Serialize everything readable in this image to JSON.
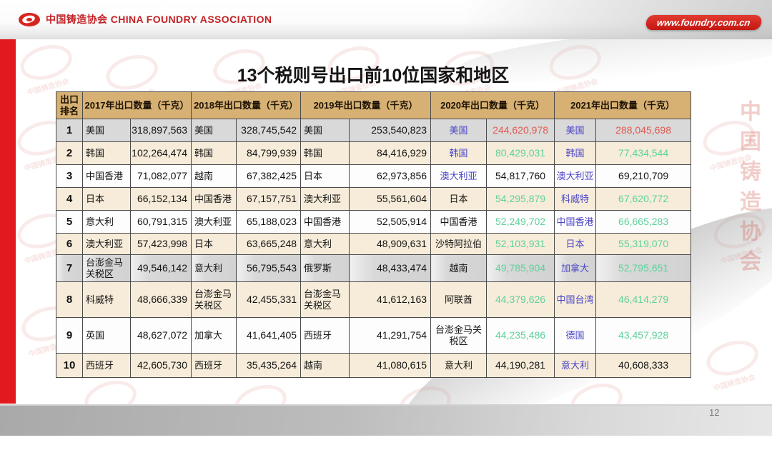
{
  "top_bar": {
    "org_name": "中国铸造协会 CHINA FOUNDRY ASSOCIATION",
    "website": "www.foundry.com.cn"
  },
  "slide": {
    "title": "13个税则号出口前10位国家和地区",
    "page_number": "12",
    "watermark_text": "中国铸造协会"
  },
  "colors": {
    "accent_red": "#e2191d",
    "brand_text_red": "#c32225",
    "badge_red": "#cf1b15",
    "header_bg": "#d7b173",
    "row_cream": "#f6ecd9",
    "row_gray": "#d9d9d9",
    "country_blue": "#4a44c6",
    "value_up_red": "#e25a52",
    "value_down_green": "#5ed19b",
    "text_black": "#141414",
    "page_number_gray": "#7a7a7a"
  },
  "table": {
    "rank_header": "出口排名",
    "year_headers": [
      "2017年出口数量（千克）",
      "2018年出口数量（千克）",
      "2019年出口数量（千克）",
      "2020年出口数量（千克）",
      "2021年出口数量（千克）"
    ],
    "rows": [
      {
        "rank": "1",
        "years": [
          {
            "c": "美国",
            "v": "318,897,563"
          },
          {
            "c": "美国",
            "v": "328,745,542"
          },
          {
            "c": "美国",
            "v": "253,540,823"
          },
          {
            "c": "美国",
            "v": "244,620,978",
            "cc": "country_blue",
            "vc": "value_up_red"
          },
          {
            "c": "美国",
            "v": "288,045,698",
            "cc": "country_blue",
            "vc": "value_up_red"
          }
        ]
      },
      {
        "rank": "2",
        "years": [
          {
            "c": "韩国",
            "v": "102,264,474"
          },
          {
            "c": "韩国",
            "v": "84,799,939"
          },
          {
            "c": "韩国",
            "v": "84,416,929"
          },
          {
            "c": "韩国",
            "v": "80,429,031",
            "cc": "country_blue",
            "vc": "value_down_green"
          },
          {
            "c": "韩国",
            "v": "77,434,544",
            "cc": "country_blue",
            "vc": "value_down_green"
          }
        ]
      },
      {
        "rank": "3",
        "years": [
          {
            "c": "中国香港",
            "v": "71,082,077"
          },
          {
            "c": "越南",
            "v": "67,382,425"
          },
          {
            "c": "日本",
            "v": "62,973,856"
          },
          {
            "c": "澳大利亚",
            "v": "54,817,760",
            "cc": "country_blue"
          },
          {
            "c": "澳大利亚",
            "v": "69,210,709",
            "cc": "country_blue"
          }
        ]
      },
      {
        "rank": "4",
        "years": [
          {
            "c": "日本",
            "v": "66,152,134"
          },
          {
            "c": "中国香港",
            "v": "67,157,751"
          },
          {
            "c": "澳大利亚",
            "v": "55,561,604"
          },
          {
            "c": "日本",
            "v": "54,295,879",
            "vc": "value_down_green"
          },
          {
            "c": "科威特",
            "v": "67,620,772",
            "cc": "country_blue",
            "vc": "value_down_green"
          }
        ]
      },
      {
        "rank": "5",
        "years": [
          {
            "c": "意大利",
            "v": "60,791,315"
          },
          {
            "c": "澳大利亚",
            "v": "65,188,023"
          },
          {
            "c": "中国香港",
            "v": "52,505,914"
          },
          {
            "c": "中国香港",
            "v": "52,249,702",
            "vc": "value_down_green"
          },
          {
            "c": "中国香港",
            "v": "66,665,283",
            "cc": "country_blue",
            "vc": "value_down_green"
          }
        ]
      },
      {
        "rank": "6",
        "years": [
          {
            "c": "澳大利亚",
            "v": "57,423,998"
          },
          {
            "c": "日本",
            "v": "63,665,248"
          },
          {
            "c": "意大利",
            "v": "48,909,631"
          },
          {
            "c": "沙特阿拉伯",
            "v": "52,103,931",
            "vc": "value_down_green"
          },
          {
            "c": "日本",
            "v": "55,319,070",
            "cc": "country_blue",
            "vc": "value_down_green"
          }
        ]
      },
      {
        "rank": "7",
        "years": [
          {
            "c": "台澎金马关税区",
            "v": "49,546,142"
          },
          {
            "c": "意大利",
            "v": "56,795,543"
          },
          {
            "c": "俄罗斯",
            "v": "48,433,474"
          },
          {
            "c": "越南",
            "v": "49,785,904",
            "vc": "value_down_green"
          },
          {
            "c": "加拿大",
            "v": "52,795,651",
            "cc": "country_blue",
            "vc": "value_down_green"
          }
        ]
      },
      {
        "rank": "8",
        "years": [
          {
            "c": "科威特",
            "v": "48,666,339"
          },
          {
            "c": "台澎金马关税区",
            "v": "42,455,331"
          },
          {
            "c": "台澎金马关税区",
            "v": "41,612,163"
          },
          {
            "c": "阿联酋",
            "v": "44,379,626",
            "vc": "value_down_green"
          },
          {
            "c": "中国台湾",
            "v": "46,414,279",
            "cc": "country_blue",
            "vc": "value_down_green"
          }
        ]
      },
      {
        "rank": "9",
        "years": [
          {
            "c": "英国",
            "v": "48,627,072"
          },
          {
            "c": "加拿大",
            "v": "41,641,405"
          },
          {
            "c": "西班牙",
            "v": "41,291,754"
          },
          {
            "c": "台澎金马关税区",
            "v": "44,235,486",
            "vc": "value_down_green"
          },
          {
            "c": "德国",
            "v": "43,457,928",
            "cc": "country_blue",
            "vc": "value_down_green"
          }
        ]
      },
      {
        "rank": "10",
        "years": [
          {
            "c": "西班牙",
            "v": "42,605,730"
          },
          {
            "c": "西班牙",
            "v": "35,435,264"
          },
          {
            "c": "越南",
            "v": "41,080,615"
          },
          {
            "c": "意大利",
            "v": "44,190,281"
          },
          {
            "c": "意大利",
            "v": "40,608,333",
            "cc": "country_blue"
          }
        ]
      }
    ]
  }
}
